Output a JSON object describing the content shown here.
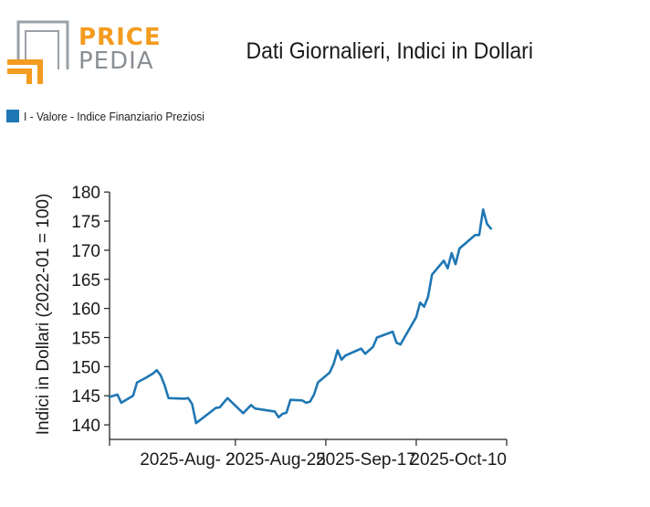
{
  "logo": {
    "line1": "PRICE",
    "line2": "PEDIA",
    "brand_orange": "#f39c1f",
    "brand_grey": "#9aa0a6"
  },
  "colors": {
    "series": "#1f77b4",
    "axis": "#222222"
  },
  "chart_data": {
    "type": "line",
    "title": "Dati Giornalieri, Indici in Dollari",
    "ylabel": "Indici in Dollari (2022-01 = 100)",
    "xlabel": "",
    "ylim": [
      137.5,
      180.5
    ],
    "yticks": [
      140,
      145,
      150,
      155,
      160,
      165,
      170,
      175,
      180
    ],
    "xlim": [
      "2025-07-01",
      "2025-10-10"
    ],
    "xticks": [
      {
        "date": "2025-07-01",
        "label": ""
      },
      {
        "date": "2025-08-02",
        "label": "2025-Aug- 2"
      },
      {
        "date": "2025-08-25",
        "label": "2025-Aug-25"
      },
      {
        "date": "2025-09-17",
        "label": "2025-Sep-17"
      },
      {
        "date": "2025-10-10",
        "label": "2025-Oct-10"
      }
    ],
    "legend_position": "top-left",
    "grid": false,
    "series": [
      {
        "name": "I - Valore - Indice Finanziario Preziosi",
        "points": [
          [
            "2025-07-01",
            144.8
          ],
          [
            "2025-07-03",
            145.2
          ],
          [
            "2025-07-04",
            143.8
          ],
          [
            "2025-07-06",
            144.6
          ],
          [
            "2025-07-07",
            145.0
          ],
          [
            "2025-07-08",
            147.3
          ],
          [
            "2025-07-10",
            148.0
          ],
          [
            "2025-07-12",
            148.8
          ],
          [
            "2025-07-13",
            149.4
          ],
          [
            "2025-07-14",
            148.5
          ],
          [
            "2025-07-15",
            146.8
          ],
          [
            "2025-07-16",
            144.6
          ],
          [
            "2025-07-20",
            144.5
          ],
          [
            "2025-07-21",
            144.6
          ],
          [
            "2025-07-22",
            143.6
          ],
          [
            "2025-07-23",
            140.3
          ],
          [
            "2025-07-28",
            142.9
          ],
          [
            "2025-07-29",
            143.0
          ],
          [
            "2025-07-31",
            144.6
          ],
          [
            "2025-08-04",
            142.0
          ],
          [
            "2025-08-06",
            143.4
          ],
          [
            "2025-08-07",
            142.8
          ],
          [
            "2025-08-11",
            142.4
          ],
          [
            "2025-08-12",
            142.3
          ],
          [
            "2025-08-13",
            141.3
          ],
          [
            "2025-08-14",
            141.9
          ],
          [
            "2025-08-15",
            142.1
          ],
          [
            "2025-08-16",
            144.3
          ],
          [
            "2025-08-19",
            144.2
          ],
          [
            "2025-08-20",
            143.8
          ],
          [
            "2025-08-21",
            144.0
          ],
          [
            "2025-08-22",
            145.2
          ],
          [
            "2025-08-23",
            147.3
          ],
          [
            "2025-08-26",
            149.0
          ],
          [
            "2025-08-27",
            150.5
          ],
          [
            "2025-08-28",
            152.8
          ],
          [
            "2025-08-29",
            151.2
          ],
          [
            "2025-08-30",
            151.9
          ],
          [
            "2025-09-02",
            152.8
          ],
          [
            "2025-09-03",
            153.1
          ],
          [
            "2025-09-04",
            152.2
          ],
          [
            "2025-09-06",
            153.4
          ],
          [
            "2025-09-07",
            155.0
          ],
          [
            "2025-09-11",
            156.0
          ],
          [
            "2025-09-12",
            154.1
          ],
          [
            "2025-09-13",
            153.8
          ],
          [
            "2025-09-14",
            155.0
          ],
          [
            "2025-09-17",
            158.5
          ],
          [
            "2025-09-18",
            161.0
          ],
          [
            "2025-09-19",
            160.3
          ],
          [
            "2025-09-20",
            162.0
          ],
          [
            "2025-09-21",
            165.8
          ],
          [
            "2025-09-24",
            168.2
          ],
          [
            "2025-09-25",
            166.9
          ],
          [
            "2025-09-26",
            169.5
          ],
          [
            "2025-09-27",
            167.6
          ],
          [
            "2025-09-28",
            170.3
          ],
          [
            "2025-10-02",
            172.6
          ],
          [
            "2025-10-03",
            172.6
          ],
          [
            "2025-10-04",
            177.0
          ],
          [
            "2025-10-05",
            174.5
          ],
          [
            "2025-10-06",
            173.7
          ]
        ]
      }
    ]
  }
}
